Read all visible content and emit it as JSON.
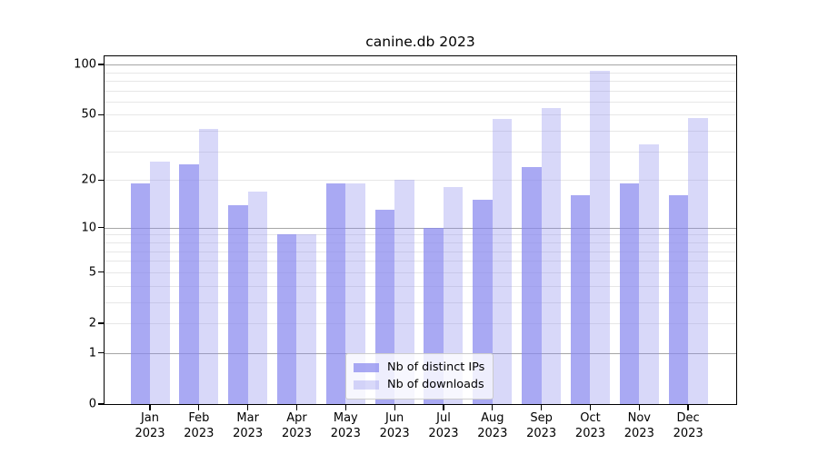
{
  "chart_data": {
    "type": "bar",
    "title": "canine.db 2023",
    "categories": [
      "Jan 2023",
      "Feb 2023",
      "Mar 2023",
      "Apr 2023",
      "May 2023",
      "Jun 2023",
      "Jul 2023",
      "Aug 2023",
      "Sep 2023",
      "Oct 2023",
      "Nov 2023",
      "Dec 2023"
    ],
    "series": [
      {
        "name": "Nb of distinct IPs",
        "color": "rgba(136,136,238,0.72)",
        "values": [
          19,
          25,
          14,
          9,
          19,
          13,
          10,
          15,
          24,
          16,
          19,
          16
        ]
      },
      {
        "name": "Nb of downloads",
        "color": "rgba(136,136,238,0.33)",
        "values": [
          26,
          41,
          17,
          9,
          19,
          20,
          18,
          47,
          55,
          92,
          33,
          48
        ]
      }
    ],
    "xlabel": "",
    "ylabel": "",
    "y_scale": "log1p",
    "ylim": [
      0,
      112
    ],
    "y_ticks": [
      0,
      1,
      2,
      5,
      10,
      20,
      50,
      100
    ],
    "y_major_gridlines": [
      1,
      10,
      100
    ],
    "y_minor_gridlines": [
      2,
      3,
      4,
      5,
      6,
      7,
      8,
      9,
      20,
      30,
      40,
      50,
      60,
      70,
      80,
      90
    ],
    "grid": true,
    "legend_position": "lower center"
  },
  "colors": {
    "bar_base": "#8888ee",
    "major_grid": "#a6a6a6",
    "minor_grid": "#e7e7e7",
    "axis": "#000000",
    "legend_border": "#cccccc"
  }
}
